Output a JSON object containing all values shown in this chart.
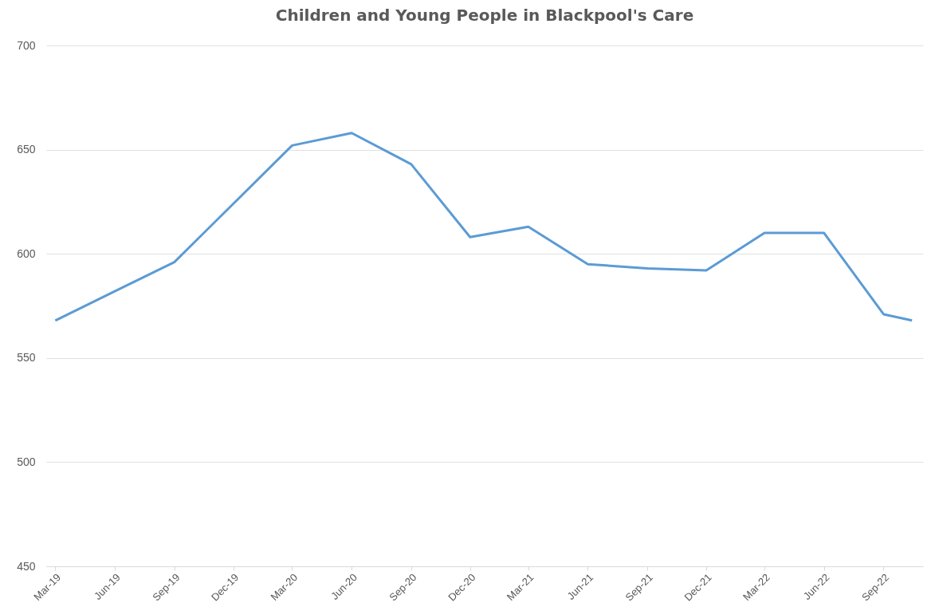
{
  "chart_data": {
    "type": "line",
    "title": "Children and Young People in Blackpool's Care",
    "x": [
      "2019-03",
      "2019-06",
      "2019-09",
      "2019-12",
      "2020-03",
      "2020-06",
      "2020-09",
      "2020-12",
      "2021-03",
      "2021-06",
      "2021-09",
      "2021-12",
      "2022-03",
      "2022-06",
      "2022-09",
      "2022-10-15"
    ],
    "series": [
      {
        "color": "#5b9bd5",
        "values": [
          568,
          582,
          596,
          624,
          652,
          658,
          643,
          608,
          613,
          595,
          593,
          592,
          610,
          610,
          571,
          568
        ]
      }
    ],
    "xlim": [
      "2019-02-15",
      "2022-11-01"
    ],
    "xticks": [
      {
        "value": "2019-03",
        "label": "Mar-19"
      },
      {
        "value": "2019-06",
        "label": "Jun-19"
      },
      {
        "value": "2019-09",
        "label": "Sep-19"
      },
      {
        "value": "2019-12",
        "label": "Dec-19"
      },
      {
        "value": "2020-03",
        "label": "Mar-20"
      },
      {
        "value": "2020-06",
        "label": "Jun-20"
      },
      {
        "value": "2020-09",
        "label": "Sep-20"
      },
      {
        "value": "2020-12",
        "label": "Dec-20"
      },
      {
        "value": "2021-03",
        "label": "Mar-21"
      },
      {
        "value": "2021-06",
        "label": "Jun-21"
      },
      {
        "value": "2021-09",
        "label": "Sep-21"
      },
      {
        "value": "2021-12",
        "label": "Dec-21"
      },
      {
        "value": "2022-03",
        "label": "Mar-22"
      },
      {
        "value": "2022-06",
        "label": "Jun-22"
      },
      {
        "value": "2022-09",
        "label": "Sep-22"
      }
    ],
    "ylim": [
      450,
      700
    ],
    "yticks": [
      450,
      500,
      550,
      600,
      650,
      700
    ],
    "grid": "y",
    "legend": false,
    "marker": "none",
    "line_style": "solid"
  }
}
